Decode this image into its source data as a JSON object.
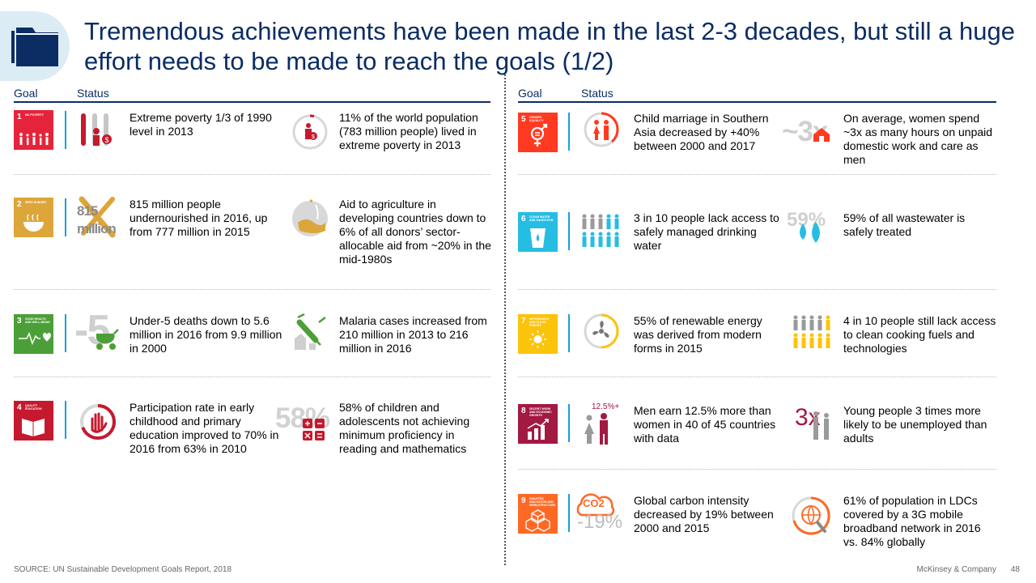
{
  "title": "Tremendous achievements have been made in the last 2-3 decades, but still a huge effort needs to be made to reach the goals (1/2)",
  "headers": {
    "goal": "Goal",
    "status": "Status"
  },
  "accent": "#0b2d63",
  "line_color": "#1a9fd9",
  "left_rows": [
    {
      "num": "1",
      "tile_text": "NO POVERTY",
      "tile_color": "#e5243b",
      "status1": "Extreme poverty 1/3 of 1990 level in 2013",
      "status2": "11% of the world population (783 million people) lived in extreme poverty in 2013"
    },
    {
      "num": "2",
      "tile_text": "ZERO HUNGER",
      "tile_color": "#dda63a",
      "icon1_num": "815",
      "icon1_unit": "million",
      "status1": "815 million people undernourished in 2016, up from 777 million in 2015",
      "status2": "Aid to agriculture in developing countries down to 6% of all donors’ sector-allocable aid from ~20% in the mid-1980s"
    },
    {
      "num": "3",
      "tile_text": "GOOD HEALTH AND WELL-BEING",
      "tile_color": "#4c9f38",
      "icon1_num": "-5",
      "status1": "Under-5 deaths down to 5.6 million in 2016 from 9.9 million in 2000",
      "status2": "Malaria cases increased from 210 million in 2013 to 216 million in 2016"
    },
    {
      "num": "4",
      "tile_text": "QUALITY EDUCATION",
      "tile_color": "#c5192d",
      "icon2_num": "58%",
      "status1": "Participation rate in early childhood and primary education improved to 70% in 2016 from 63% in 2010",
      "status2": "58% of children and adolescents not achieving minimum proficiency in reading and mathematics"
    }
  ],
  "right_rows": [
    {
      "num": "5",
      "tile_text": "GENDER EQUALITY",
      "tile_color": "#ff3a21",
      "icon2_num": "~3x",
      "status1": "Child marriage in Southern Asia decreased by +40% between 2000 and 2017",
      "status2": "On average, women spend ~3x as many hours on unpaid domestic work and care as men"
    },
    {
      "num": "6",
      "tile_text": "CLEAN WATER AND SANITATION",
      "tile_color": "#26bde2",
      "icon2_num": "59%",
      "status1": "3 in 10 people lack access to safely managed drinking water",
      "status2": "59% of all wastewater is safely treated"
    },
    {
      "num": "7",
      "tile_text": "AFFORDABLE AND CLEAN ENERGY",
      "tile_color": "#fcc30b",
      "status1": "55% of renewable energy was derived from modern forms in 2015",
      "status2": "4 in 10 people still lack access to clean cooking fuels and technologies"
    },
    {
      "num": "8",
      "tile_text": "DECENT WORK AND ECONOMIC GROWTH",
      "tile_color": "#a21942",
      "icon1_num": "12.5%+",
      "icon2_num": "3x",
      "status1": "Men earn 12.5% more than women in 40 of 45 countries with data",
      "status2": "Young people 3 times more likely to be unemployed than adults"
    },
    {
      "num": "9",
      "tile_text": "INDUSTRY, INNOVATION AND INFRASTRUCTURE",
      "tile_color": "#fd6925",
      "icon1_num": "-19%",
      "icon1_label": "CO2",
      "status1": "Global carbon intensity decreased by 19% between 2000 and 2015",
      "status2": "61% of population in LDCs covered by a 3G mobile broadband network in 2016 vs. 84% globally"
    }
  ],
  "footer": {
    "source": "SOURCE: UN Sustainable Development Goals Report, 2018",
    "company": "McKinsey & Company",
    "page": "48"
  }
}
